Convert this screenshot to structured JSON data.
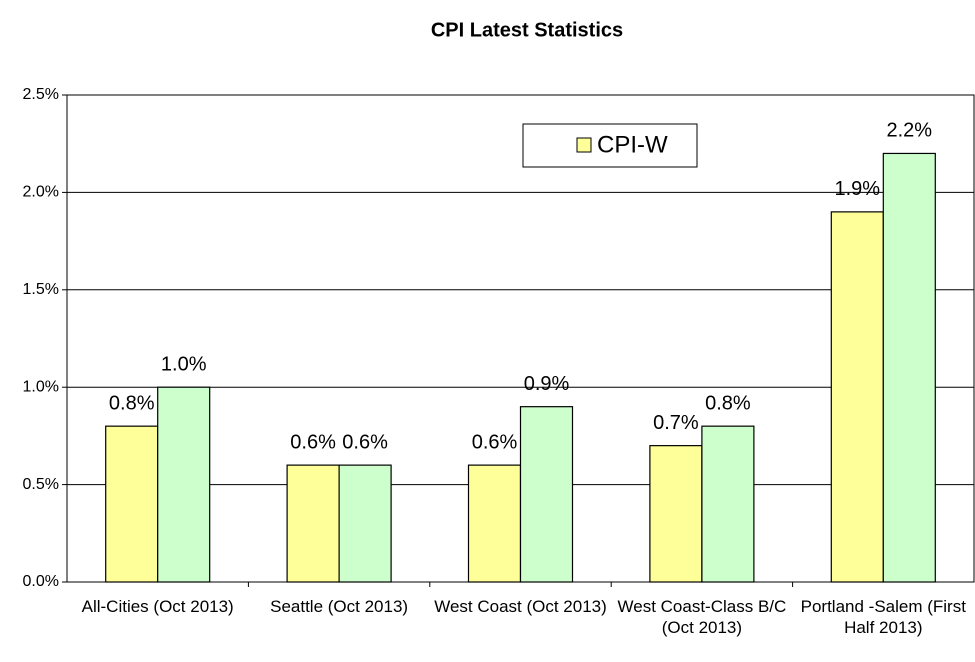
{
  "chart_data": {
    "type": "bar",
    "title": "CPI Latest Statistics",
    "categories": [
      "All-Cities (Oct 2013)",
      "Seattle (Oct 2013)",
      "West Coast (Oct 2013)",
      "West Coast-Class B/C (Oct 2013)",
      "Portland -Salem (First Half 2013)"
    ],
    "series": [
      {
        "name": "CPI-W",
        "color": "#ffff99",
        "values": [
          0.8,
          0.6,
          0.6,
          0.7,
          1.9
        ],
        "value_labels": [
          "0.8%",
          "0.6%",
          "0.6%",
          "0.7%",
          "1.9%"
        ]
      },
      {
        "color": "#ccffcc",
        "values": [
          1.0,
          0.6,
          0.9,
          0.8,
          2.2
        ],
        "value_labels": [
          "1.0%",
          "0.6%",
          "0.9%",
          "0.8%",
          "2.2%"
        ]
      }
    ],
    "ylim": [
      0,
      2.5
    ],
    "yticks": [
      {
        "value": 0,
        "label": "0.0%"
      },
      {
        "value": 0.5,
        "label": "0.5%"
      },
      {
        "value": 1.0,
        "label": "1.0%"
      },
      {
        "value": 1.5,
        "label": "1.5%"
      },
      {
        "value": 2.0,
        "label": "2.0%"
      },
      {
        "value": 2.5,
        "label": "2.5%"
      }
    ],
    "grid": true
  }
}
